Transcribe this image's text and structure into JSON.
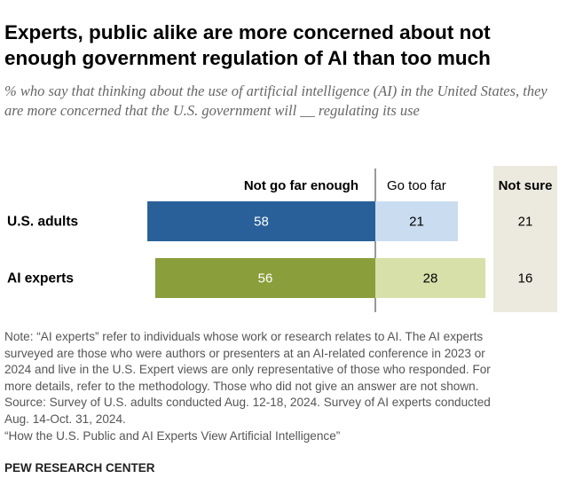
{
  "title": "Experts, public alike are more concerned about not enough government regulation of AI than too much",
  "subtitle": "% who say that thinking about the use of artificial intelligence (AI) in the United States, they are more concerned that the U.S. government will __ regulating its use",
  "notes": [
    "Note: “AI experts” refer to individuals whose work or research relates to AI. The AI experts",
    "surveyed are those who were authors or presenters at an AI-related conference in 2023 or",
    "2024 and live in the U.S. Expert views are only representative of those who responded. For",
    "more details, refer to the methodology. Those who did not give an answer are not shown.",
    "Source: Survey of U.S. adults conducted Aug. 12-18, 2024. Survey of AI experts conducted",
    "Aug. 14-Oct. 31, 2024.",
    "“How the U.S. Public and AI Experts View Artificial Intelligence”"
  ],
  "source_org": "PEW RESEARCH CENTER",
  "chart_data": {
    "type": "bar",
    "orientation": "horizontal diverging stacked",
    "categories": [
      "U.S. adults",
      "AI experts"
    ],
    "series": [
      {
        "name": "Not go far enough",
        "values": [
          58,
          56
        ],
        "colors": [
          "#2a6099",
          "#8a9e3c"
        ]
      },
      {
        "name": "Go too far",
        "values": [
          21,
          28
        ],
        "colors": [
          "#c9dcf0",
          "#d6e0a8"
        ]
      },
      {
        "name": "Not sure",
        "values": [
          21,
          16
        ],
        "colors": [
          "#eceadf",
          "#eceadf"
        ]
      }
    ],
    "grid": false,
    "legend": "column headers above bars"
  }
}
